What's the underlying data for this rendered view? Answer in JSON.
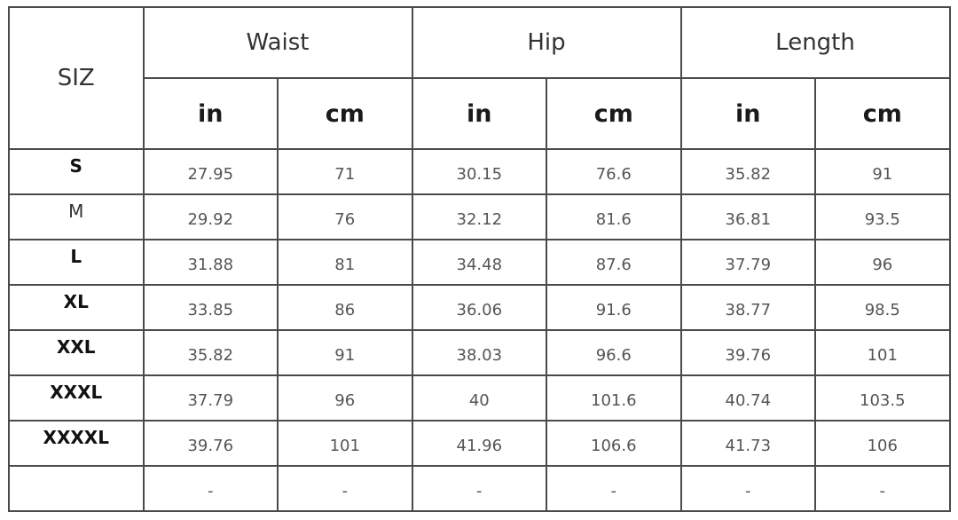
{
  "header": {
    "size_label": "SIZ",
    "groups": [
      "Waist",
      "Hip",
      "Length"
    ],
    "units": [
      "in",
      "cm",
      "in",
      "cm",
      "in",
      "cm"
    ]
  },
  "rows": [
    {
      "size": "S",
      "bold": true,
      "values": [
        "27.95",
        "71",
        "30.15",
        "76.6",
        "35.82",
        "91"
      ]
    },
    {
      "size": "M",
      "bold": false,
      "values": [
        "29.92",
        "76",
        "32.12",
        "81.6",
        "36.81",
        "93.5"
      ]
    },
    {
      "size": "L",
      "bold": true,
      "values": [
        "31.88",
        "81",
        "34.48",
        "87.6",
        "37.79",
        "96"
      ]
    },
    {
      "size": "XL",
      "bold": true,
      "values": [
        "33.85",
        "86",
        "36.06",
        "91.6",
        "38.77",
        "98.5"
      ]
    },
    {
      "size": "XXL",
      "bold": true,
      "values": [
        "35.82",
        "91",
        "38.03",
        "96.6",
        "39.76",
        "101"
      ]
    },
    {
      "size": "XXXL",
      "bold": true,
      "values": [
        "37.79",
        "96",
        "40",
        "101.6",
        "40.74",
        "103.5"
      ]
    },
    {
      "size": "XXXXL",
      "bold": true,
      "values": [
        "39.76",
        "101",
        "41.96",
        "106.6",
        "41.73",
        "106"
      ]
    },
    {
      "size": "",
      "bold": false,
      "values": [
        "-",
        "-",
        "-",
        "-",
        "-",
        "-"
      ]
    }
  ]
}
